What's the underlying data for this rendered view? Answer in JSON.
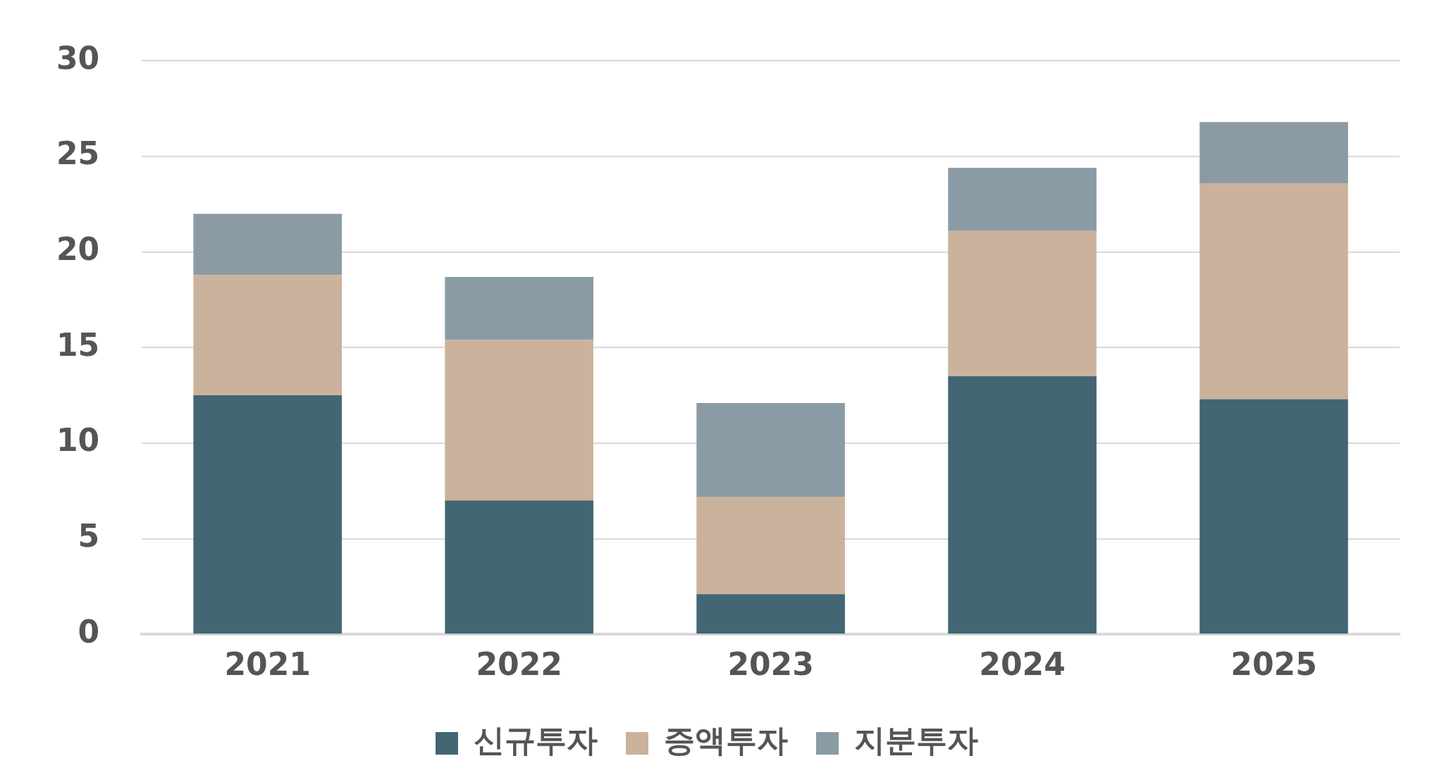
{
  "chart_data": {
    "type": "bar",
    "stacked": true,
    "categories": [
      "2021",
      "2022",
      "2023",
      "2024",
      "2025"
    ],
    "series": [
      {
        "name": "신규투자",
        "color": "#426673",
        "values": [
          12.5,
          7.0,
          2.1,
          13.5,
          12.3
        ]
      },
      {
        "name": "증액투자",
        "color": "#cbb29c",
        "values": [
          6.3,
          8.4,
          5.1,
          7.6,
          11.3
        ]
      },
      {
        "name": "지분투자",
        "color": "#8a9ba5",
        "values": [
          3.2,
          3.3,
          4.9,
          3.3,
          3.2
        ]
      }
    ],
    "ylim": [
      0,
      30
    ],
    "yticks": [
      0,
      5,
      10,
      15,
      20,
      25,
      30
    ],
    "grid": "y",
    "legend": "bottom"
  }
}
